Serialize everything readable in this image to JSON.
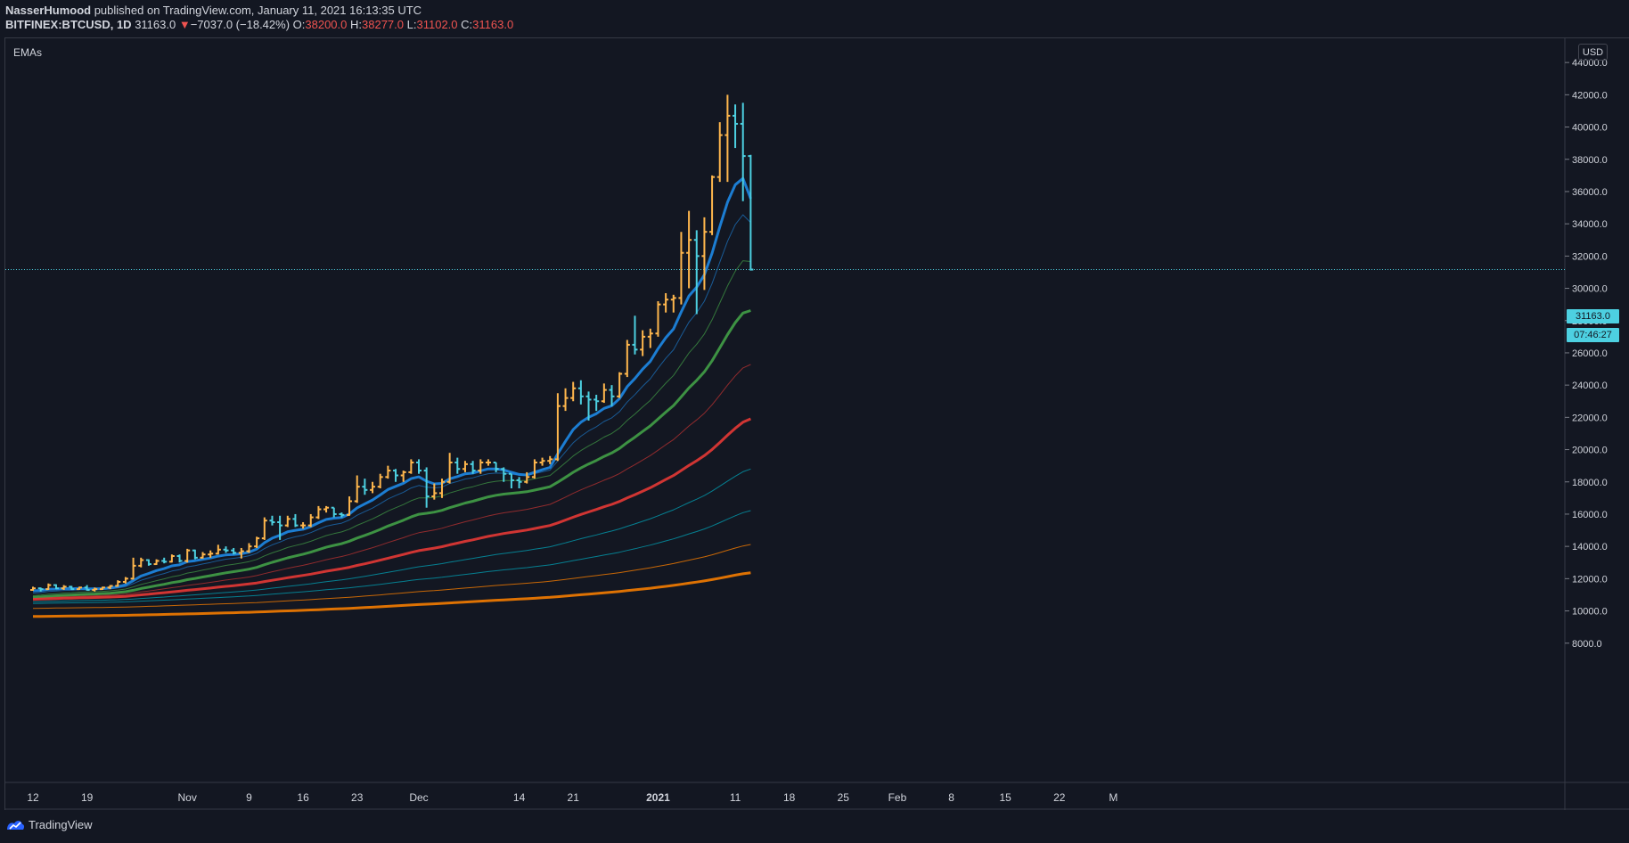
{
  "header": {
    "author": "NasserHumood",
    "published_text": " published on TradingView.com, January 11, 2021 16:13:35 UTC",
    "symbol": "BITFINEX:BTCUSD, 1D",
    "last": "31163.0",
    "change": "−7037.0 (−18.42%)",
    "o_label": "O:",
    "o_val": "38200.0",
    "h_label": "H:",
    "h_val": "38277.0",
    "l_label": "L:",
    "l_val": "31102.0",
    "c_label": "C:",
    "c_val": "31163.0"
  },
  "indicator_label": "EMAs",
  "currency_button": "USD",
  "footer": {
    "brand": "TradingView"
  },
  "price_tags": {
    "last_price": "31163.0",
    "countdown": "07:46:27"
  },
  "colors": {
    "background": "#131722",
    "up_bar": "#ffb74d",
    "down_bar": "#4dd0e1",
    "ema_blue": "#1e88e5",
    "ema_green": "#43a047",
    "ema_red": "#e53935",
    "ema_teal": "#00acc1",
    "ema_orange": "#f57c00",
    "grid": "#363a45",
    "text": "#d1d4dc"
  },
  "chart_data": {
    "type": "ohlc",
    "title": "BITFINEX:BTCUSD, 1D",
    "ylabel": "USD",
    "ylim": [
      7000,
      45500
    ],
    "y_ticks": [
      "8000.0",
      "10000.0",
      "12000.0",
      "14000.0",
      "16000.0",
      "18000.0",
      "20000.0",
      "22000.0",
      "24000.0",
      "26000.0",
      "28000.0",
      "30000.0",
      "32000.0",
      "34000.0",
      "36000.0",
      "38000.0",
      "40000.0",
      "42000.0",
      "44000.0"
    ],
    "x_ticks": [
      {
        "label": "12",
        "day": 0
      },
      {
        "label": "19",
        "day": 7
      },
      {
        "label": "Nov",
        "day": 20
      },
      {
        "label": "9",
        "day": 28
      },
      {
        "label": "16",
        "day": 35
      },
      {
        "label": "23",
        "day": 42
      },
      {
        "label": "Dec",
        "day": 50
      },
      {
        "label": "14",
        "day": 63
      },
      {
        "label": "21",
        "day": 70
      },
      {
        "label": "2021",
        "day": 81
      },
      {
        "label": "11",
        "day": 91
      },
      {
        "label": "18",
        "day": 98
      },
      {
        "label": "25",
        "day": 105
      },
      {
        "label": "Feb",
        "day": 112
      },
      {
        "label": "8",
        "day": 119
      },
      {
        "label": "15",
        "day": 126
      },
      {
        "label": "22",
        "day": 133
      },
      {
        "label": "M",
        "day": 140
      }
    ],
    "first_date": "2020-10-10",
    "bars": [
      [
        11300,
        11500,
        11250,
        11400
      ],
      [
        11400,
        11450,
        11200,
        11350
      ],
      [
        11350,
        11700,
        11300,
        11600
      ],
      [
        11600,
        11650,
        11350,
        11400
      ],
      [
        11400,
        11600,
        11300,
        11500
      ],
      [
        11500,
        11550,
        11300,
        11350
      ],
      [
        11350,
        11500,
        11300,
        11450
      ],
      [
        11450,
        11600,
        11250,
        11300
      ],
      [
        11300,
        11450,
        11200,
        11350
      ],
      [
        11350,
        11500,
        11300,
        11450
      ],
      [
        11450,
        11600,
        11350,
        11550
      ],
      [
        11550,
        11900,
        11500,
        11800
      ],
      [
        11800,
        12100,
        11700,
        12000
      ],
      [
        12000,
        13300,
        11950,
        12800
      ],
      [
        12800,
        13300,
        12700,
        13150
      ],
      [
        13150,
        13200,
        12800,
        12900
      ],
      [
        12900,
        13200,
        12850,
        13100
      ],
      [
        13100,
        13300,
        12950,
        13050
      ],
      [
        13050,
        13500,
        13000,
        13400
      ],
      [
        13400,
        13500,
        13000,
        13100
      ],
      [
        13100,
        13850,
        13000,
        13750
      ],
      [
        13750,
        13800,
        13200,
        13300
      ],
      [
        13300,
        13650,
        13250,
        13500
      ],
      [
        13500,
        13750,
        13300,
        13550
      ],
      [
        13550,
        14100,
        13500,
        13800
      ],
      [
        13800,
        14000,
        13600,
        13750
      ],
      [
        13750,
        13900,
        13500,
        13600
      ],
      [
        13600,
        13900,
        13250,
        13700
      ],
      [
        13700,
        14200,
        13600,
        14000
      ],
      [
        14000,
        14600,
        13900,
        14500
      ],
      [
        14500,
        15800,
        14400,
        15600
      ],
      [
        15600,
        15900,
        15300,
        15500
      ],
      [
        15500,
        15900,
        14400,
        15300
      ],
      [
        15300,
        15900,
        15200,
        15700
      ],
      [
        15700,
        16000,
        15200,
        15300
      ],
      [
        15300,
        15500,
        15100,
        15300
      ],
      [
        15300,
        16000,
        15200,
        15800
      ],
      [
        15800,
        16500,
        15700,
        16300
      ],
      [
        16300,
        16500,
        16100,
        16400
      ],
      [
        16400,
        16400,
        15800,
        16000
      ],
      [
        16000,
        16100,
        15800,
        15950
      ],
      [
        15950,
        17100,
        15900,
        16800
      ],
      [
        16800,
        18400,
        16700,
        17700
      ],
      [
        17700,
        18200,
        17200,
        17500
      ],
      [
        17500,
        18000,
        17300,
        17700
      ],
      [
        17700,
        18500,
        17600,
        18300
      ],
      [
        18300,
        19000,
        18200,
        18700
      ],
      [
        18700,
        18800,
        18000,
        18400
      ],
      [
        18400,
        18700,
        18000,
        18600
      ],
      [
        18600,
        19400,
        18500,
        19200
      ],
      [
        19200,
        19400,
        18500,
        18700
      ],
      [
        18700,
        18900,
        16400,
        17100
      ],
      [
        17100,
        17900,
        16900,
        17300
      ],
      [
        17300,
        18200,
        17000,
        18000
      ],
      [
        18000,
        19800,
        17900,
        19200
      ],
      [
        19200,
        19500,
        18500,
        18800
      ],
      [
        18800,
        19300,
        18600,
        19100
      ],
      [
        19100,
        19300,
        18500,
        18700
      ],
      [
        18700,
        19400,
        18500,
        19200
      ],
      [
        19200,
        19400,
        19000,
        19200
      ],
      [
        19200,
        19200,
        18600,
        18800
      ],
      [
        18800,
        18900,
        18000,
        18500
      ],
      [
        18500,
        18500,
        17600,
        18100
      ],
      [
        18100,
        18300,
        17600,
        18000
      ],
      [
        18000,
        18600,
        17900,
        18300
      ],
      [
        18300,
        19400,
        18200,
        19200
      ],
      [
        19200,
        19500,
        19000,
        19300
      ],
      [
        19300,
        19600,
        19100,
        19400
      ],
      [
        19400,
        23500,
        19300,
        22700
      ],
      [
        22700,
        23800,
        22400,
        23200
      ],
      [
        23200,
        24200,
        23000,
        23800
      ],
      [
        23800,
        24300,
        22800,
        23300
      ],
      [
        23300,
        23600,
        21800,
        23100
      ],
      [
        23100,
        23400,
        22400,
        23000
      ],
      [
        23000,
        24100,
        22900,
        23700
      ],
      [
        23700,
        24000,
        22700,
        23300
      ],
      [
        23300,
        24800,
        23200,
        24700
      ],
      [
        24700,
        26800,
        24500,
        26500
      ],
      [
        26500,
        28300,
        25900,
        26200
      ],
      [
        26200,
        27400,
        25800,
        27000
      ],
      [
        27000,
        27500,
        26300,
        27200
      ],
      [
        27200,
        29200,
        27000,
        29000
      ],
      [
        29000,
        29700,
        28500,
        29300
      ],
      [
        29300,
        29600,
        28500,
        29400
      ],
      [
        29400,
        33500,
        29000,
        32200
      ],
      [
        32200,
        34800,
        30000,
        33000
      ],
      [
        33000,
        33600,
        28400,
        32000
      ],
      [
        32000,
        34400,
        29900,
        33500
      ],
      [
        33500,
        37000,
        33300,
        36900
      ],
      [
        36900,
        40300,
        36600,
        39500
      ],
      [
        39500,
        42000,
        36600,
        40700
      ],
      [
        40700,
        41400,
        38700,
        40200
      ],
      [
        40200,
        41500,
        35400,
        38200
      ],
      [
        38200,
        38277,
        31102,
        31163
      ]
    ],
    "emas": [
      {
        "period": 8,
        "color": "#1e88e5",
        "width": 3,
        "opacity": 0.9
      },
      {
        "period": 13,
        "color": "#1e88e5",
        "width": 1,
        "opacity": 0.6
      },
      {
        "period": 21,
        "color": "#43a047",
        "width": 1,
        "opacity": 0.7
      },
      {
        "period": 34,
        "color": "#43a047",
        "width": 3,
        "opacity": 0.9
      },
      {
        "period": 55,
        "color": "#e53935",
        "width": 1,
        "opacity": 0.6
      },
      {
        "period": 89,
        "color": "#e53935",
        "width": 3,
        "opacity": 0.9
      },
      {
        "period": 144,
        "color": "#00acc1",
        "width": 1,
        "opacity": 0.7
      },
      {
        "period": 233,
        "color": "#00acc1",
        "width": 1,
        "opacity": 0.7
      },
      {
        "period": 377,
        "color": "#f57c00",
        "width": 1,
        "opacity": 0.8
      },
      {
        "period": 610,
        "color": "#f57c00",
        "width": 3,
        "opacity": 0.9
      }
    ],
    "ema_seed": {
      "8": 11200,
      "13": 11050,
      "21": 10900,
      "34": 10800,
      "55": 10750,
      "89": 10700,
      "144": 10550,
      "233": 10450,
      "377": 10150,
      "610": 9650
    }
  }
}
